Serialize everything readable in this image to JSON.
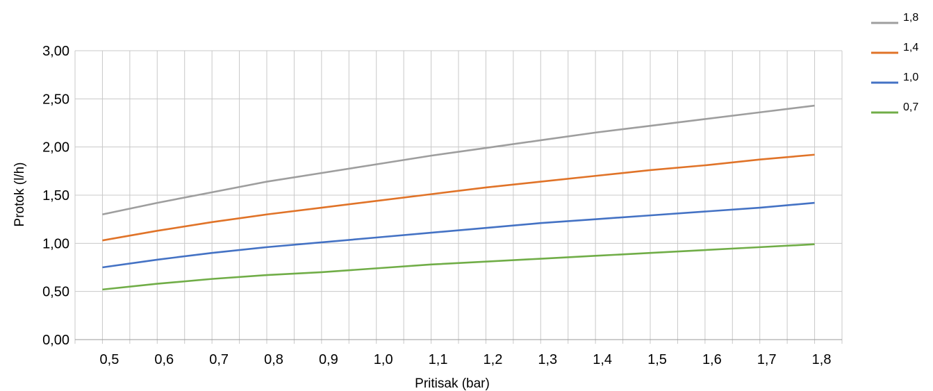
{
  "chart_data": {
    "type": "line",
    "title": "",
    "xlabel": "Pritisak (bar)",
    "ylabel": "Protok  (l/h)",
    "x": [
      "0,5",
      "0,6",
      "0,7",
      "0,8",
      "0,9",
      "1,0",
      "1,1",
      "1,2",
      "1,3",
      "1,4",
      "1,5",
      "1,6",
      "1,7",
      "1,8"
    ],
    "y_ticks": [
      "0,00",
      "0,50",
      "1,00",
      "1,50",
      "2,00",
      "2,50",
      "3,00"
    ],
    "ylim": [
      0,
      3
    ],
    "grid": true,
    "legend_position": "top-right",
    "series": [
      {
        "name": "1,8",
        "color": "#9e9e9e",
        "values": [
          1.3,
          1.42,
          1.53,
          1.64,
          1.73,
          1.82,
          1.91,
          1.99,
          2.07,
          2.15,
          2.22,
          2.29,
          2.36,
          2.43
        ]
      },
      {
        "name": "1,4",
        "color": "#e07328",
        "values": [
          1.03,
          1.13,
          1.22,
          1.3,
          1.37,
          1.44,
          1.51,
          1.58,
          1.64,
          1.7,
          1.76,
          1.81,
          1.87,
          1.92
        ]
      },
      {
        "name": "1,0",
        "color": "#4472c4",
        "values": [
          0.75,
          0.83,
          0.9,
          0.96,
          1.01,
          1.06,
          1.11,
          1.16,
          1.21,
          1.25,
          1.29,
          1.33,
          1.37,
          1.42
        ]
      },
      {
        "name": "0,7",
        "color": "#70ad47",
        "values": [
          0.52,
          0.58,
          0.63,
          0.67,
          0.7,
          0.74,
          0.78,
          0.81,
          0.84,
          0.87,
          0.9,
          0.93,
          0.96,
          0.99
        ]
      }
    ]
  }
}
